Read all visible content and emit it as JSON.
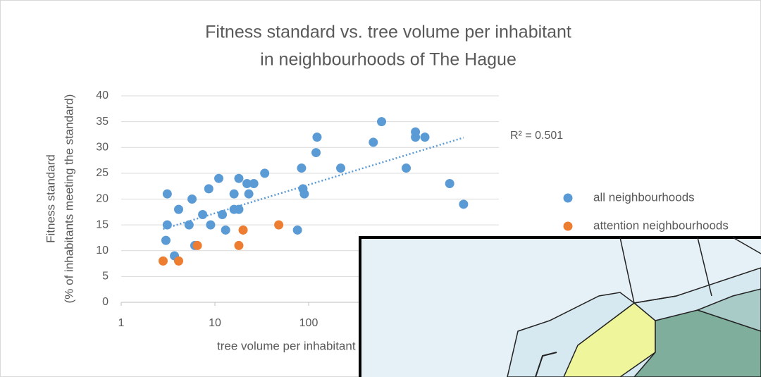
{
  "chart_data": {
    "type": "scatter",
    "title": [
      "Fitness standard vs. tree volume per inhabitant",
      "in neighbourhoods of The Hague"
    ],
    "y_label": [
      "Fitness standard",
      "(% of inhabitants meeting the standard)"
    ],
    "x_label": "tree volume per inhabitant",
    "xlog": true,
    "xlim": [
      1,
      10000
    ],
    "xticks": [
      1,
      10,
      100
    ],
    "ylim": [
      0,
      40
    ],
    "yticks": [
      0,
      5,
      10,
      15,
      20,
      25,
      30,
      35,
      40
    ],
    "grid": true,
    "series": [
      {
        "name": "all neighbourhoods",
        "color": "#5b9bd5",
        "x": [
          3.1,
          3.1,
          3.0,
          3.7,
          4.1,
          5.3,
          5.7,
          6.1,
          7.4,
          8.6,
          9.0,
          11,
          12,
          13,
          16,
          16,
          18,
          18,
          22,
          23,
          26,
          34,
          76,
          84,
          87,
          90,
          120,
          123,
          220,
          490,
          600,
          1100,
          1380,
          1380,
          1740,
          3200,
          4500
        ],
        "values": [
          21,
          15,
          12,
          9,
          18,
          15,
          20,
          11,
          17,
          22,
          15,
          24,
          17,
          14,
          18,
          21,
          18,
          24,
          23,
          21,
          23,
          25,
          14,
          26,
          22,
          21,
          29,
          32,
          26,
          31,
          35,
          26,
          33,
          32,
          32,
          23,
          19
        ]
      },
      {
        "name": "attention neighbourhoods",
        "color": "#ed7d31",
        "x": [
          2.8,
          4.1,
          6.5,
          18,
          20,
          48
        ],
        "values": [
          8,
          8,
          11,
          11,
          14,
          15
        ]
      }
    ],
    "trendline": {
      "x": [
        2.8,
        4500
      ],
      "values": [
        14.2,
        31.9
      ],
      "color": "#5b9bd5",
      "label": "R² = 0.501"
    }
  }
}
